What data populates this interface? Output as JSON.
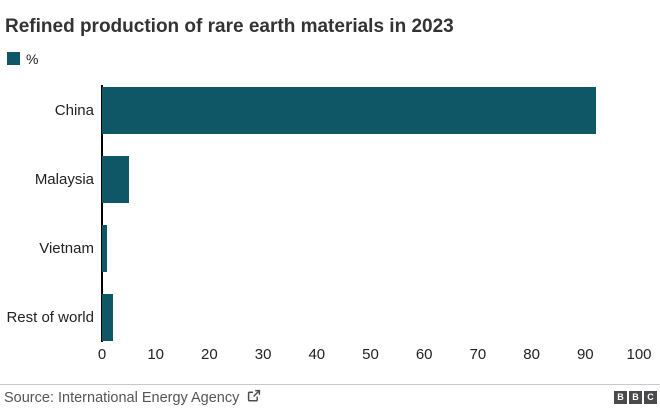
{
  "chart": {
    "title": "Refined production of rare earth materials in 2023",
    "legend_label": "%"
  },
  "chart_data": {
    "type": "bar",
    "orientation": "horizontal",
    "title": "Refined production of rare earth materials in 2023",
    "categories": [
      "China",
      "Malaysia",
      "Vietnam",
      "Rest of world"
    ],
    "values": [
      92,
      5,
      1,
      2
    ],
    "unit": "%",
    "xlabel": "",
    "ylabel": "",
    "xlim": [
      0,
      100
    ],
    "xticks": [
      0,
      10,
      20,
      30,
      40,
      50,
      60,
      70,
      80,
      90,
      100
    ],
    "legend": [
      "%"
    ],
    "legend_position": "top-left",
    "grid": false,
    "bar_color": "#0f5666"
  },
  "footer": {
    "source": "Source: International Energy Agency",
    "external_link_icon": "external-link",
    "logo_letters": [
      "B",
      "B",
      "C"
    ]
  },
  "colors": {
    "bar": "#0f5666",
    "title_text": "#333333",
    "label_text": "#222222",
    "source_text": "#555555",
    "divider": "#c9c9c9",
    "axis_line": "#000000",
    "logo_bg": "#4a4a4c",
    "logo_text": "#ffffff",
    "background": "#ffffff"
  }
}
